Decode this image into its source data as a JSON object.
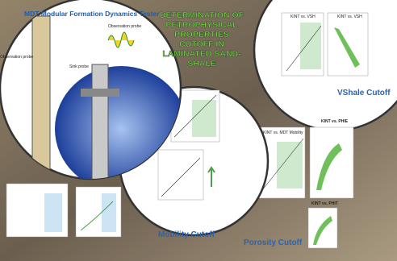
{
  "header": {
    "title_lines": [
      "DETERMINATION OF",
      "PETROPHYSICAL",
      "PROPERTIES",
      "CUTOFF IN",
      "LAMINATED SAND-",
      "SHALE"
    ]
  },
  "tool": {
    "title": "MDT Modular Formation Dynamics Tester",
    "labels": [
      "Observation probe",
      "Sink probe",
      "Observation probe"
    ]
  },
  "vshale": {
    "caption": "VShale Cutoff",
    "charts": [
      "KINT vs. VSH",
      "KINT vs. VSH"
    ]
  },
  "porosity": {
    "caption": "Porosity Cutoff",
    "charts": [
      "KINT vs. MDT Mobility",
      "KINT vs. PHIE",
      "KINT vs. PHIT"
    ]
  },
  "mobility": {
    "caption": "Mobility Cutoff"
  }
}
